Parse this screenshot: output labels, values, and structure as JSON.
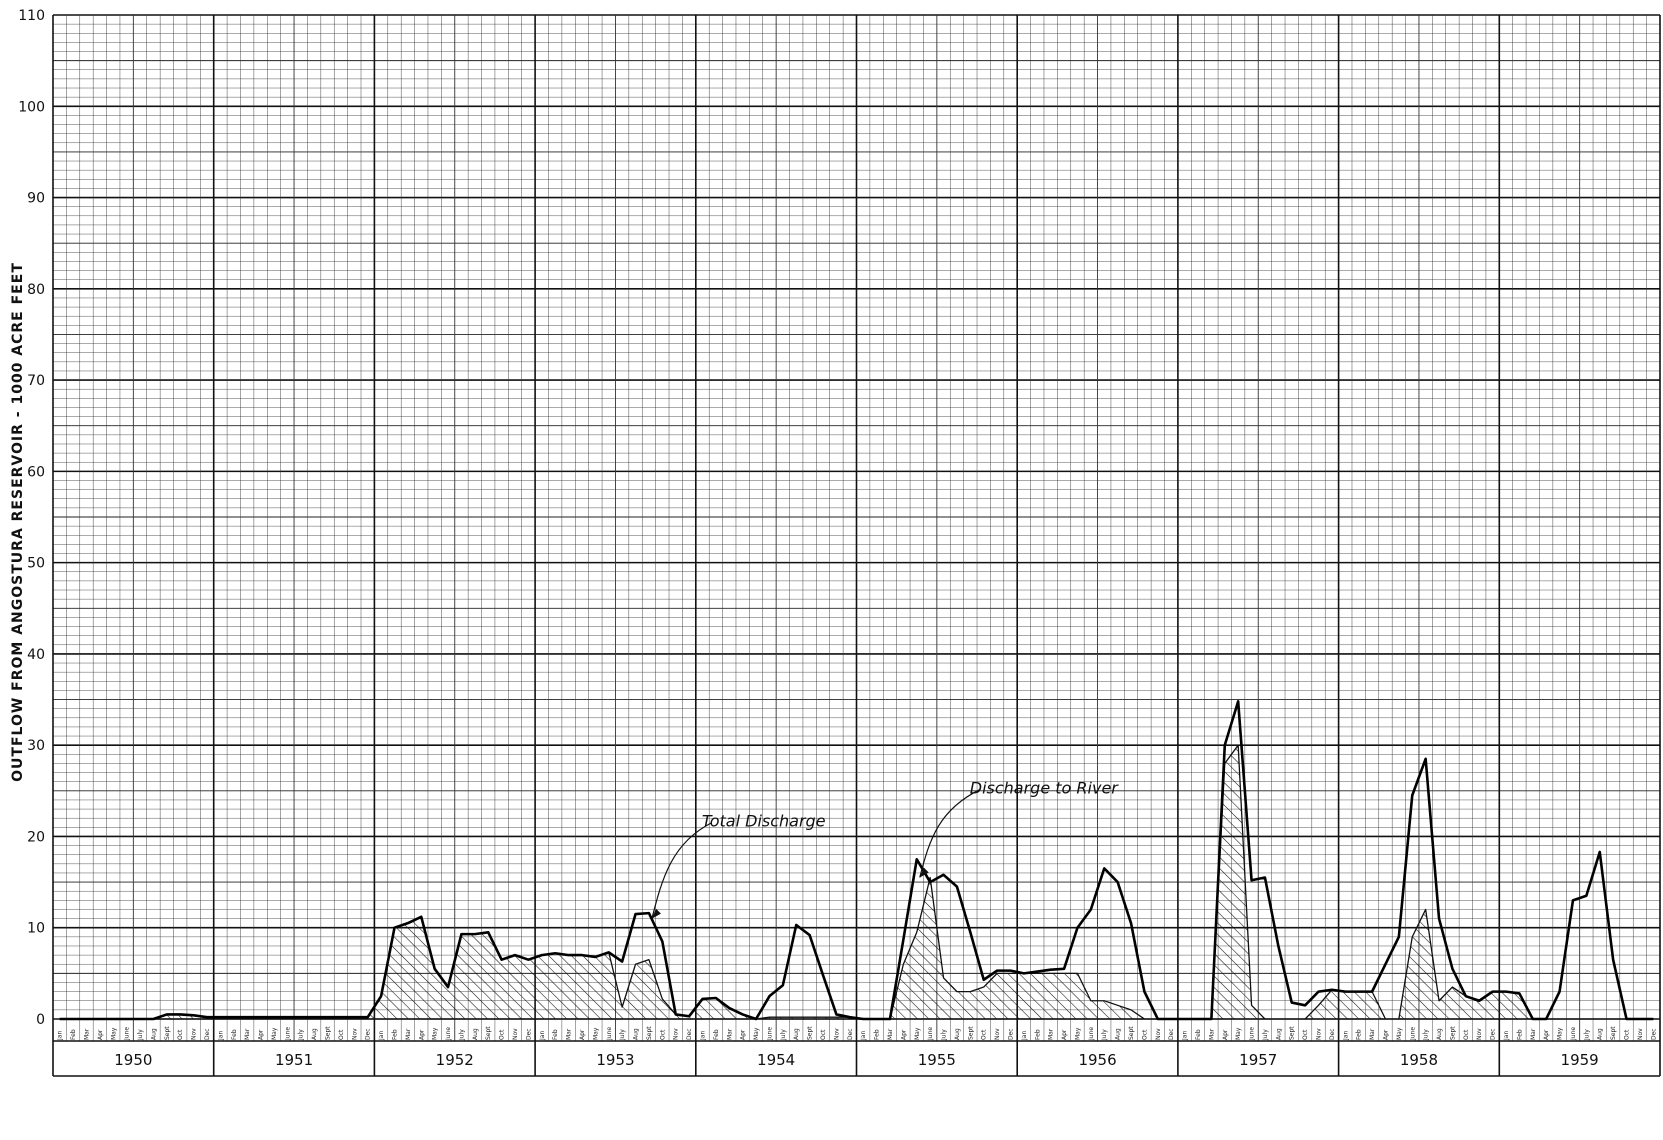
{
  "chart_data": {
    "type": "area",
    "title": "",
    "xlabel": "",
    "ylabel": "OUTFLOW FROM ANGOSTURA RESERVOIR - 1000 ACRE FEET",
    "ylim": [
      0,
      110
    ],
    "yticks": [
      0,
      10,
      20,
      30,
      40,
      50,
      60,
      70,
      80,
      90,
      100,
      110
    ],
    "grid": true,
    "legend": "none",
    "years": [
      "1950",
      "1951",
      "1952",
      "1953",
      "1954",
      "1955",
      "1956",
      "1957",
      "1958",
      "1959"
    ],
    "month_labels": [
      "Jan",
      "Feb",
      "Mar",
      "Apr",
      "May",
      "June",
      "July",
      "Aug",
      "Sept",
      "Oct",
      "Nov",
      "Dec"
    ],
    "x_start": "1950-01",
    "series": [
      {
        "name": "Total Discharge",
        "style": "line",
        "values": [
          0,
          0,
          0,
          0,
          0,
          0,
          0,
          0,
          0.5,
          0.5,
          0.4,
          0.2,
          0.2,
          0.2,
          0.2,
          0.2,
          0.2,
          0.2,
          0.2,
          0.2,
          0.2,
          0.2,
          0.2,
          0.2,
          2.5,
          10,
          10.5,
          11.2,
          5.5,
          3.5,
          9.3,
          9.3,
          9.5,
          6.5,
          7,
          6.5,
          7,
          7.2,
          7,
          7,
          6.8,
          7.3,
          6.3,
          11.5,
          11.6,
          8.5,
          0.5,
          0.3,
          2.2,
          2.3,
          1.2,
          0.5,
          0,
          2.5,
          3.7,
          10.3,
          9.2,
          4.8,
          0.5,
          0.2,
          0,
          0,
          0,
          8.7,
          17.5,
          15,
          15.8,
          14.5,
          9.5,
          4.3,
          5.3,
          5.3,
          5,
          5.2,
          5.4,
          5.5,
          10,
          12,
          16.5,
          15,
          10.5,
          3,
          0,
          0,
          0,
          0,
          0,
          30,
          34.8,
          15.2,
          15.5,
          8,
          1.8,
          1.5,
          3,
          3.2,
          3,
          3,
          3,
          6,
          9,
          24.5,
          28.5,
          11,
          5.5,
          2.5,
          2,
          3,
          3,
          2.8,
          0,
          0,
          3,
          13,
          13.5,
          18.3,
          6.5,
          0,
          0,
          0
        ]
      },
      {
        "name": "Discharge to River",
        "style": "hatched-area",
        "values": [
          0,
          0,
          0,
          0,
          0,
          0,
          0,
          0,
          0.5,
          0.5,
          0.4,
          0.2,
          0.2,
          0.2,
          0.2,
          0.2,
          0.2,
          0.2,
          0.2,
          0.2,
          0.2,
          0.2,
          0.2,
          0.2,
          2.5,
          10,
          10.5,
          11.2,
          5.5,
          3.5,
          9.3,
          9.3,
          9.5,
          6.5,
          7,
          6.5,
          7,
          7.2,
          7,
          7,
          6.8,
          7.3,
          1.3,
          6,
          6.5,
          2.2,
          0.5,
          0.3,
          2.2,
          2.3,
          1.2,
          0.5,
          0,
          0.2,
          0.2,
          0.2,
          0.2,
          0.2,
          0.2,
          0.2,
          0,
          0,
          0,
          6,
          9.5,
          15.5,
          4.5,
          3,
          3,
          3.5,
          5,
          5,
          5,
          5,
          5,
          5,
          5,
          2,
          2,
          1.5,
          1,
          0,
          0,
          0,
          0,
          0,
          0,
          28,
          30,
          1.5,
          0,
          0,
          0,
          0,
          1.5,
          3.2,
          3,
          3,
          3,
          0,
          0,
          9,
          12,
          2,
          3.5,
          2.5,
          2,
          3,
          3,
          2.8,
          0,
          0,
          0,
          0,
          0,
          0,
          0,
          0,
          0,
          0
        ]
      }
    ],
    "annotations": [
      {
        "text": "Total Discharge",
        "x": "1953-09",
        "y": 11
      },
      {
        "text": "Discharge to River",
        "x": "1955-05",
        "y": 15.5
      }
    ]
  }
}
